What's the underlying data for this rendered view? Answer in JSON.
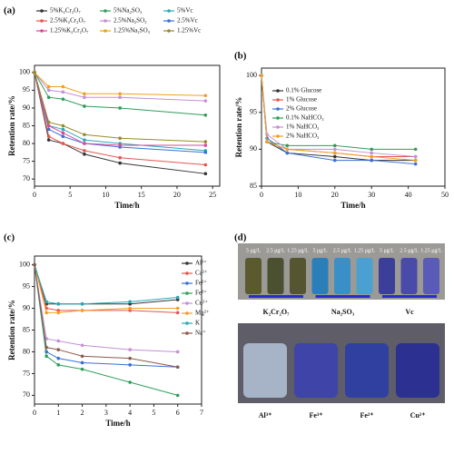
{
  "chart_data": [
    {
      "type": "line",
      "panel_label": "(a)",
      "xlabel": "Time/h",
      "ylabel": "Retention rate/%",
      "x": [
        0,
        2,
        4,
        7,
        12,
        24
      ],
      "xlim": [
        0,
        26
      ],
      "xticks": [
        0,
        5,
        10,
        15,
        20,
        25
      ],
      "ylim": [
        68,
        102
      ],
      "yticks": [
        70,
        75,
        80,
        85,
        90,
        95,
        100
      ],
      "series": [
        {
          "name": "5%K₂Cr₂O₇",
          "color": "#333333",
          "values": [
            100,
            81,
            80,
            77,
            74.5,
            71.5
          ]
        },
        {
          "name": "5%Na₂SO₃",
          "color": "#2e9e5a",
          "values": [
            100,
            93,
            92.5,
            90.5,
            90,
            88
          ]
        },
        {
          "name": "5%Vc",
          "color": "#27a9b8",
          "values": [
            100,
            85,
            84,
            81,
            80,
            78
          ]
        },
        {
          "name": "2.5%K₂Cr₂O₇",
          "color": "#e8554f",
          "values": [
            100,
            82,
            80,
            78,
            76,
            74
          ]
        },
        {
          "name": "2.5%Na₂SO₃",
          "color": "#c48fd8",
          "values": [
            100,
            95,
            94.5,
            93,
            93,
            92
          ]
        },
        {
          "name": "2.5%Vc",
          "color": "#3b6fd6",
          "values": [
            100,
            84,
            82,
            80,
            79,
            77.5
          ]
        },
        {
          "name": "1.25%K₂Cr₂O₇",
          "color": "#d9479b",
          "values": [
            100,
            85,
            83,
            80,
            79.5,
            79.5
          ]
        },
        {
          "name": "1.25%Na₂SO₃",
          "color": "#f0a020",
          "values": [
            100,
            96,
            96,
            94,
            94,
            93.5
          ]
        },
        {
          "name": "1.25%Vc",
          "color": "#9a8a2a",
          "values": [
            100,
            86,
            85,
            82.5,
            81.5,
            80.5
          ]
        }
      ]
    },
    {
      "type": "line",
      "panel_label": "(b)",
      "xlabel": "Time/h",
      "ylabel": "Retention rate/%",
      "x": [
        0,
        1.5,
        7,
        20,
        30,
        42
      ],
      "xlim": [
        0,
        50
      ],
      "xticks": [
        0,
        10,
        20,
        30,
        40,
        50
      ],
      "ylim": [
        85,
        101
      ],
      "yticks": [
        85,
        90,
        95,
        100
      ],
      "series": [
        {
          "name": "0.1% Glucose",
          "color": "#333333",
          "values": [
            100,
            91,
            89.5,
            89,
            88.5,
            88.5
          ]
        },
        {
          "name": "1% Glucose",
          "color": "#e8554f",
          "values": [
            100,
            91,
            90,
            89.5,
            89,
            89
          ]
        },
        {
          "name": "2% Glucose",
          "color": "#3b6fd6",
          "values": [
            100,
            91.5,
            89.5,
            88.5,
            88.5,
            88
          ]
        },
        {
          "name": "0.1% NaHCO₃",
          "color": "#2e9e5a",
          "values": [
            100,
            91,
            90.5,
            90.5,
            90,
            90
          ]
        },
        {
          "name": "1% NaHCO₃",
          "color": "#c48fd8",
          "values": [
            100,
            92,
            90,
            90,
            89.5,
            89
          ]
        },
        {
          "name": "2% NaHCO₃",
          "color": "#f0a020",
          "values": [
            100,
            91,
            90,
            89.5,
            89,
            88.5
          ]
        }
      ]
    },
    {
      "type": "line",
      "panel_label": "(c)",
      "xlabel": "Time/h",
      "ylabel": "Retention rate/%",
      "x": [
        0,
        0.5,
        1,
        2,
        4,
        6
      ],
      "xlim": [
        0,
        7
      ],
      "xticks": [
        0,
        1,
        2,
        3,
        4,
        5,
        6,
        7
      ],
      "ylim": [
        68,
        102
      ],
      "yticks": [
        70,
        75,
        80,
        85,
        90,
        95,
        100
      ],
      "series": [
        {
          "name": "Al³⁺",
          "color": "#333333",
          "values": [
            100,
            91,
            91,
            91,
            91,
            92
          ]
        },
        {
          "name": "Ca²⁺",
          "color": "#e8554f",
          "values": [
            100,
            90,
            89.5,
            89.5,
            89.5,
            89
          ]
        },
        {
          "name": "Fe²⁺",
          "color": "#3b6fd6",
          "values": [
            100,
            80,
            78.5,
            77.5,
            77,
            76.5
          ]
        },
        {
          "name": "Fe³⁺",
          "color": "#2e9e5a",
          "values": [
            100,
            79,
            77,
            76,
            73,
            70
          ]
        },
        {
          "name": "Cu²⁺",
          "color": "#c48fd8",
          "values": [
            100,
            83,
            82.5,
            81.5,
            80.5,
            80
          ]
        },
        {
          "name": "Mg²⁺",
          "color": "#f0a020",
          "values": [
            100,
            89,
            89,
            89.5,
            90,
            90
          ]
        },
        {
          "name": "K",
          "color": "#27a9b8",
          "values": [
            100,
            91.5,
            91,
            91,
            91.5,
            92.5
          ]
        },
        {
          "name": "Na⁺",
          "color": "#8a5a4a",
          "values": [
            100,
            81,
            80.5,
            79,
            78.5,
            76.5
          ]
        }
      ]
    }
  ],
  "photo": {
    "panel_label": "(d)",
    "concentrations": [
      "5 μg/L",
      "2.5 μg/L",
      "1.25 μg/L",
      "5 μg/L",
      "2.5 μg/L",
      "1.25 μg/L",
      "5 μg/L",
      "2.5 μg/L",
      "1.25 μg/L"
    ],
    "groups": [
      "K₂Cr₂O₇",
      "Na₂SO₃",
      "Vc"
    ],
    "ions": [
      "Al³⁺",
      "Fe³⁺",
      "Fe²⁺",
      "Cu²⁺"
    ]
  }
}
